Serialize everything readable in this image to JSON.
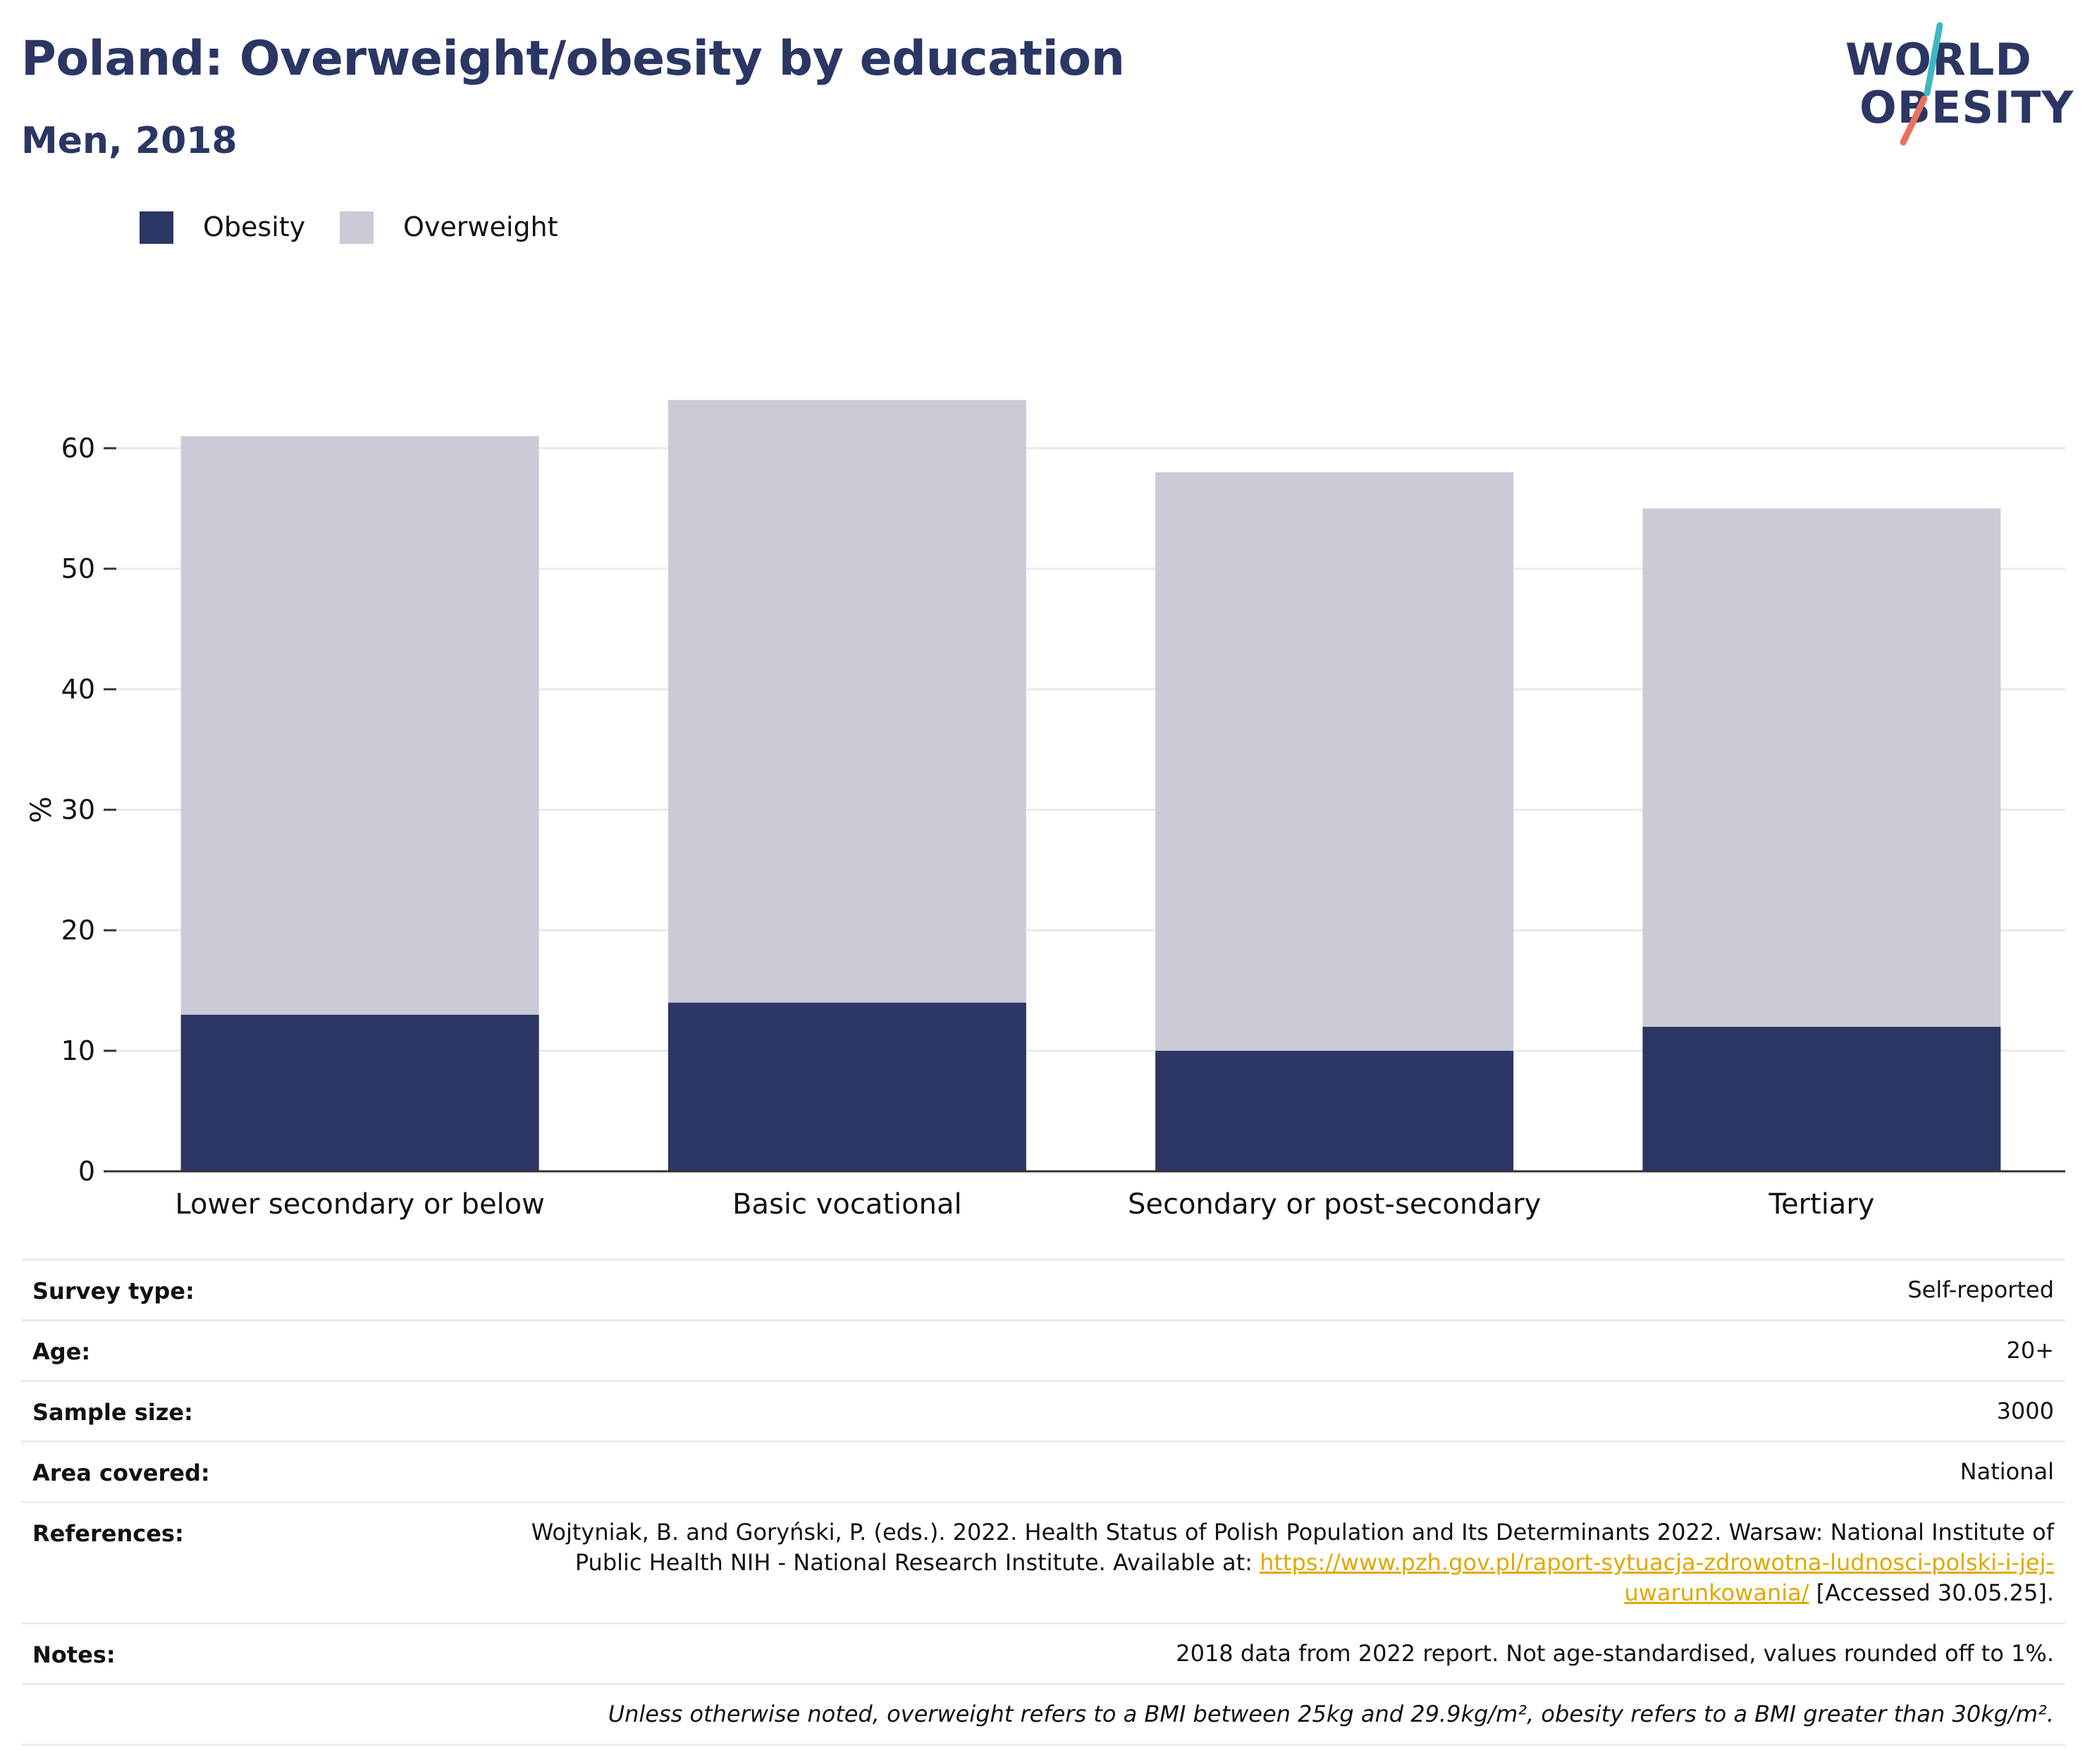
{
  "title": "Poland: Overweight/obesity by education",
  "subtitle": "Men, 2018",
  "logo": {
    "line1": "WORLD",
    "line2": "OBESITY"
  },
  "colors": {
    "obesity": "#2b3664",
    "overweight": "#cacbd7",
    "title": "#2b3664",
    "link": "#e0a800",
    "grid": "#e9e9ec"
  },
  "legend": [
    {
      "label": "Obesity",
      "color": "#2b3664"
    },
    {
      "label": "Overweight",
      "color": "#cacbd7"
    }
  ],
  "chart_data": {
    "type": "bar",
    "stacked": true,
    "categories": [
      "Lower secondary or below",
      "Basic vocational",
      "Secondary or post-secondary",
      "Tertiary"
    ],
    "series": [
      {
        "name": "Obesity",
        "values": [
          13,
          14,
          10,
          12
        ]
      },
      {
        "name": "Overweight",
        "values": [
          48,
          50,
          48,
          43
        ]
      }
    ],
    "totals": [
      61,
      64,
      58,
      55
    ],
    "ylabel": "%",
    "ylim": [
      0,
      70
    ],
    "yticks": [
      0,
      10,
      20,
      30,
      40,
      50,
      60
    ],
    "grid": true,
    "legend_position": "top-left"
  },
  "meta": [
    {
      "label": "Survey type:",
      "value": "Self-reported"
    },
    {
      "label": "Age:",
      "value": "20+"
    },
    {
      "label": "Sample size:",
      "value": "3000"
    },
    {
      "label": "Area covered:",
      "value": "National"
    },
    {
      "label": "References:",
      "value_pre": "Wojtyniak, B. and Goryński, P. (eds.). 2022. Health Status of Polish Population and Its Determinants 2022. Warsaw: National Institute of Public Health NIH - National Research Institute. Available at: ",
      "link": "https://www.pzh.gov.pl/raport-sytuacja-zdrowotna-ludnosci-polski-i-jej-uwarunkowania/",
      "value_post": " [Accessed 30.05.25]."
    },
    {
      "label": "Notes:",
      "value": "2018 data from 2022 report. Not age-standardised, values rounded off to 1%."
    }
  ],
  "footnote": "Unless otherwise noted, overweight refers to a BMI between 25kg and 29.9kg/m², obesity refers to a BMI greater than 30kg/m²."
}
